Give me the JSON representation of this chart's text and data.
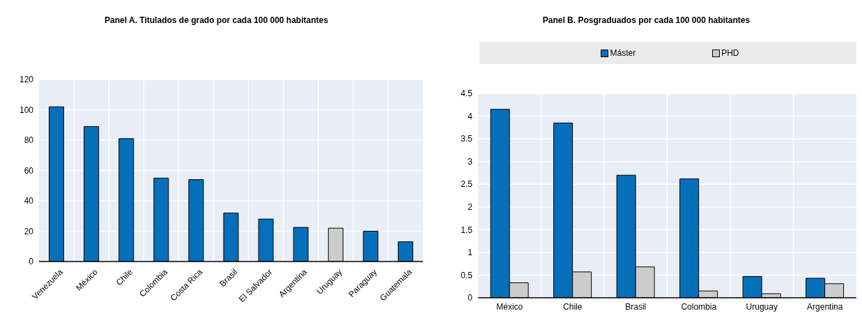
{
  "chart_data": [
    {
      "type": "bar",
      "title": "Panel A. Titulados de grado por cada 100 000 habitantes",
      "categories": [
        "Venezuela",
        "México",
        "Chile",
        "Colombia",
        "Costa Rica",
        "Brasil",
        "El Salvador",
        "Argentina",
        "Uruguay",
        "Paraguay",
        "Guatemala"
      ],
      "values": [
        102,
        89,
        81,
        55,
        54,
        32,
        28,
        22.5,
        22,
        20,
        13
      ],
      "colors": [
        "#066fba",
        "#066fba",
        "#066fba",
        "#066fba",
        "#066fba",
        "#066fba",
        "#066fba",
        "#066fba",
        "#cccccc",
        "#066fba",
        "#066fba"
      ],
      "ylim": [
        0,
        120
      ],
      "yticks": [
        0,
        20,
        40,
        60,
        80,
        100,
        120
      ],
      "grid": true
    },
    {
      "type": "bar",
      "title": "Panel B. Posgraduados por cada 100 000 habitantes",
      "categories": [
        "México",
        "Chile",
        "Brasil",
        "Colombia",
        "Uruguay",
        "Argentina"
      ],
      "series": [
        {
          "name": "Máster",
          "color": "#066fba",
          "values": [
            4.15,
            3.85,
            2.7,
            2.62,
            0.47,
            0.43
          ]
        },
        {
          "name": "PHD",
          "color": "#cccccc",
          "values": [
            0.33,
            0.57,
            0.68,
            0.15,
            0.09,
            0.31
          ]
        }
      ],
      "ylim": [
        0,
        4.5
      ],
      "yticks": [
        0,
        0.5,
        1,
        1.5,
        2,
        2.5,
        3,
        3.5,
        4,
        4.5
      ],
      "grid": true,
      "legend": "top"
    }
  ]
}
